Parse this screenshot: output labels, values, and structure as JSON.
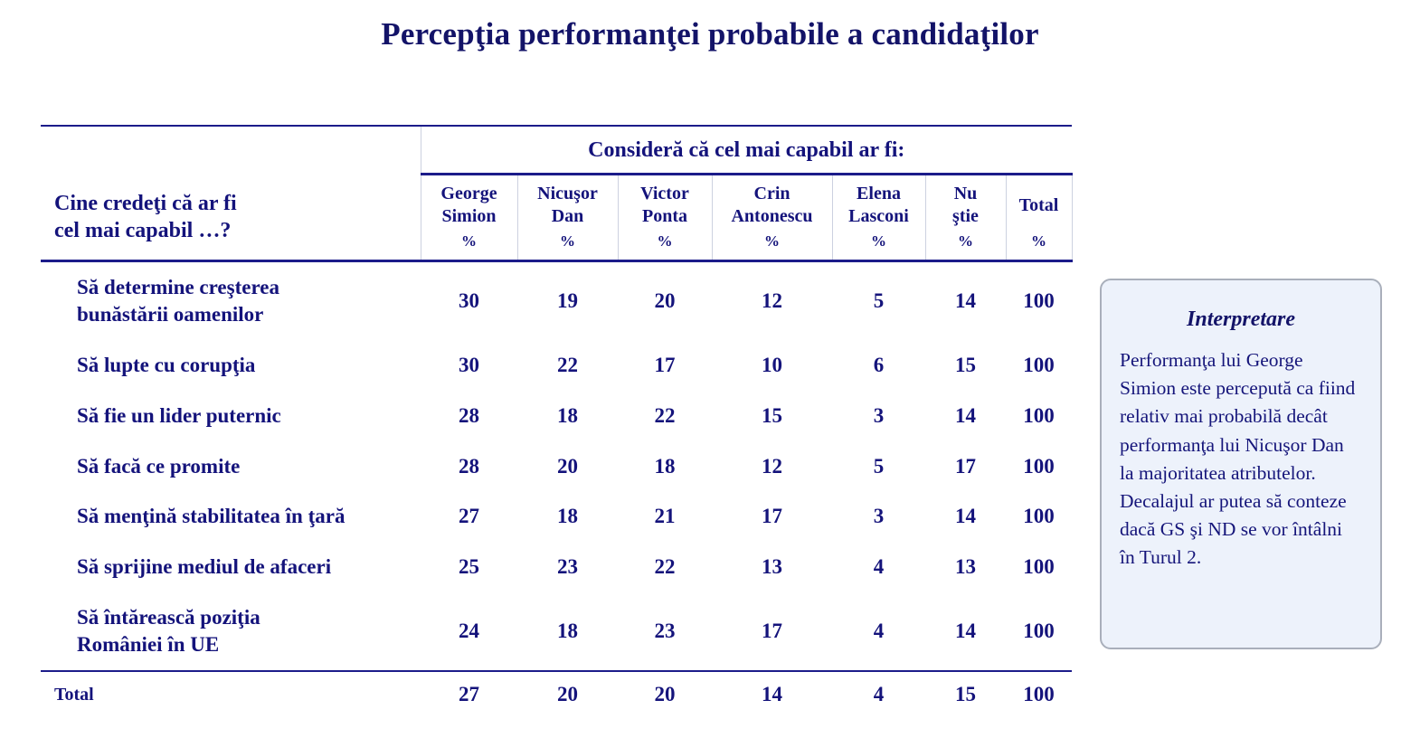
{
  "title": "Percepţia performanţei probabile a candidaţilor",
  "table": {
    "question_lines": [
      "Cine credeţi că ar fi",
      "cel mai capabil …?"
    ],
    "group_header": "Consideră că cel mai capabil ar fi:",
    "unit": "%",
    "columns": [
      {
        "name": "George Simion",
        "lines": [
          "George",
          "Simion"
        ]
      },
      {
        "name": "Nicuşor Dan",
        "lines": [
          "Nicuşor",
          "Dan"
        ]
      },
      {
        "name": "Victor Ponta",
        "lines": [
          "Victor",
          "Ponta"
        ]
      },
      {
        "name": "Crin Antonescu",
        "lines": [
          "Crin",
          "Antonescu"
        ]
      },
      {
        "name": "Elena Lasconi",
        "lines": [
          "Elena",
          "Lasconi"
        ]
      },
      {
        "name": "Nu ştie",
        "lines": [
          "Nu",
          "ştie"
        ]
      },
      {
        "name": "Total",
        "lines": [
          "Total"
        ]
      }
    ],
    "rows": [
      {
        "label": "Să determine creşterea bunăstării oamenilor",
        "label_lines": [
          "Să determine creşterea",
          "bunăstării oamenilor"
        ],
        "values": [
          30,
          19,
          20,
          12,
          5,
          14,
          100
        ]
      },
      {
        "label": "Să lupte cu corupţia",
        "label_lines": [
          "Să lupte cu corupţia"
        ],
        "values": [
          30,
          22,
          17,
          10,
          6,
          15,
          100
        ]
      },
      {
        "label": "Să fie un lider puternic",
        "label_lines": [
          "Să fie un lider puternic"
        ],
        "values": [
          28,
          18,
          22,
          15,
          3,
          14,
          100
        ]
      },
      {
        "label": "Să facă ce promite",
        "label_lines": [
          "Să facă ce promite"
        ],
        "values": [
          28,
          20,
          18,
          12,
          5,
          17,
          100
        ]
      },
      {
        "label": "Să menţină stabilitatea în ţară",
        "label_lines": [
          "Să menţină stabilitatea în ţară"
        ],
        "values": [
          27,
          18,
          21,
          17,
          3,
          14,
          100
        ]
      },
      {
        "label": "Să sprijine mediul de afaceri",
        "label_lines": [
          "Să sprijine mediul de afaceri"
        ],
        "values": [
          25,
          23,
          22,
          13,
          4,
          13,
          100
        ]
      },
      {
        "label": "Să întărească poziţia României în UE",
        "label_lines": [
          "Să întărească poziţia",
          "României în UE"
        ],
        "values": [
          24,
          18,
          23,
          17,
          4,
          14,
          100
        ]
      }
    ],
    "total": {
      "label": "Total",
      "values": [
        27,
        20,
        20,
        14,
        4,
        15,
        100
      ]
    }
  },
  "interpretation": {
    "title": "Interpretare",
    "text": "Performanţa lui George Simion este percepută ca fiind relativ mai probabilă decât performanţa lui Nicuşor Dan la majoritatea atributelor. Decalajul ar putea să conteze dacă GS şi ND se vor întâlni în Turul 2."
  },
  "colors": {
    "text": "#14137b",
    "rule": "#1c1c8a",
    "box_background": "#edf2fb",
    "box_border": "#a9afbb"
  }
}
